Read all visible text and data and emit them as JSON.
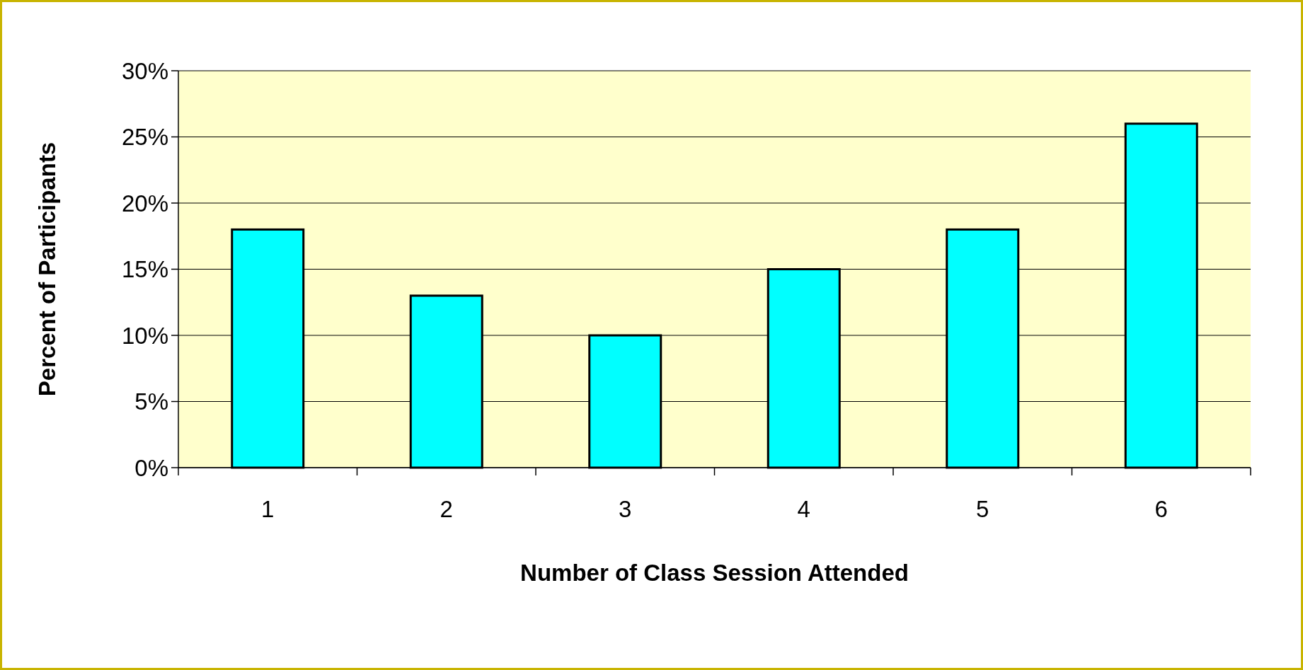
{
  "chart_data": {
    "type": "bar",
    "xlabel": "Number of Class Session Attended",
    "ylabel": "Percent of Participants",
    "categories": [
      "1",
      "2",
      "3",
      "4",
      "5",
      "6"
    ],
    "values": [
      18,
      13,
      10,
      15,
      18,
      26
    ],
    "color": "#00ffff",
    "ylim": [
      0,
      30
    ],
    "yticks": [
      {
        "value": 0,
        "label": "0%"
      },
      {
        "value": 5,
        "label": "5%"
      },
      {
        "value": 10,
        "label": "10%"
      },
      {
        "value": 15,
        "label": "15%"
      },
      {
        "value": 20,
        "label": "20%"
      },
      {
        "value": 25,
        "label": "25%"
      },
      {
        "value": 30,
        "label": "30%"
      }
    ],
    "grid": "y"
  }
}
